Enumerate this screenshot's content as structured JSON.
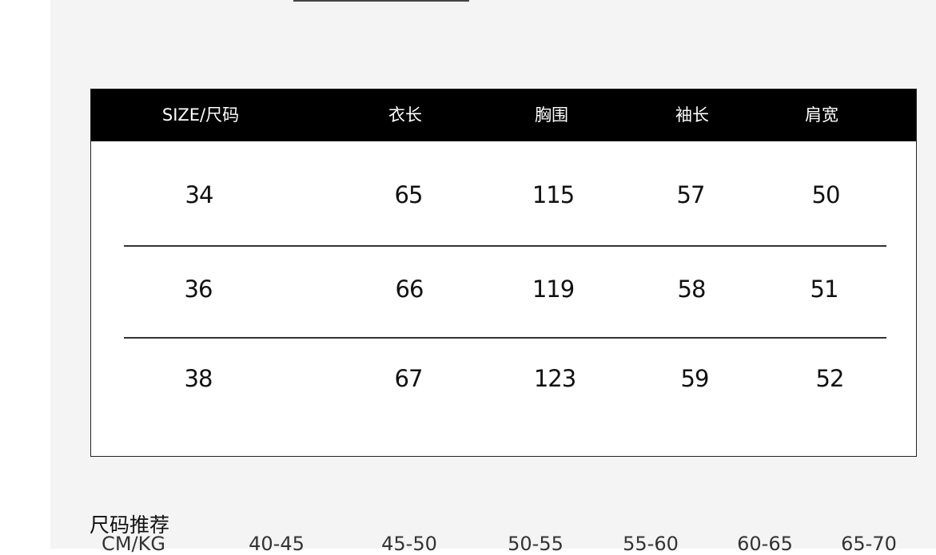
{
  "table": {
    "headers": [
      "SIZE/尺码",
      "衣长",
      "胸围",
      "袖长",
      "肩宽"
    ],
    "rows": [
      [
        "34",
        "65",
        "115",
        "57",
        "50"
      ],
      [
        "36",
        "66",
        "119",
        "58",
        "51"
      ],
      [
        "38",
        "67",
        "123",
        "59",
        "52"
      ]
    ]
  },
  "recommend": {
    "title": "尺码推荐",
    "unit_label": "CM/KG",
    "ranges": [
      "40-45",
      "45-50",
      "50-55",
      "55-60",
      "60-65",
      "65-70"
    ]
  }
}
